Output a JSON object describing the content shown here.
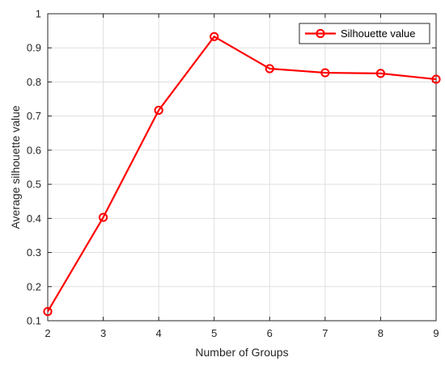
{
  "chart_data": {
    "type": "line",
    "title": "",
    "xlabel": "Number of Groups",
    "ylabel": "Average silhouette value",
    "xlim": [
      2,
      9
    ],
    "ylim": [
      0.1,
      1
    ],
    "x_ticks": [
      2,
      3,
      4,
      5,
      6,
      7,
      8,
      9
    ],
    "y_ticks": [
      0.1,
      0.2,
      0.3,
      0.4,
      0.5,
      0.6,
      0.7,
      0.8,
      0.9,
      1
    ],
    "grid": true,
    "legend_position": "top-right",
    "series": [
      {
        "name": "Silhouette value",
        "color": "#ff0000",
        "marker": "circle",
        "x": [
          2,
          3,
          4,
          5,
          6,
          7,
          8,
          9
        ],
        "values": [
          0.127,
          0.403,
          0.717,
          0.933,
          0.839,
          0.827,
          0.825,
          0.808
        ]
      }
    ]
  }
}
